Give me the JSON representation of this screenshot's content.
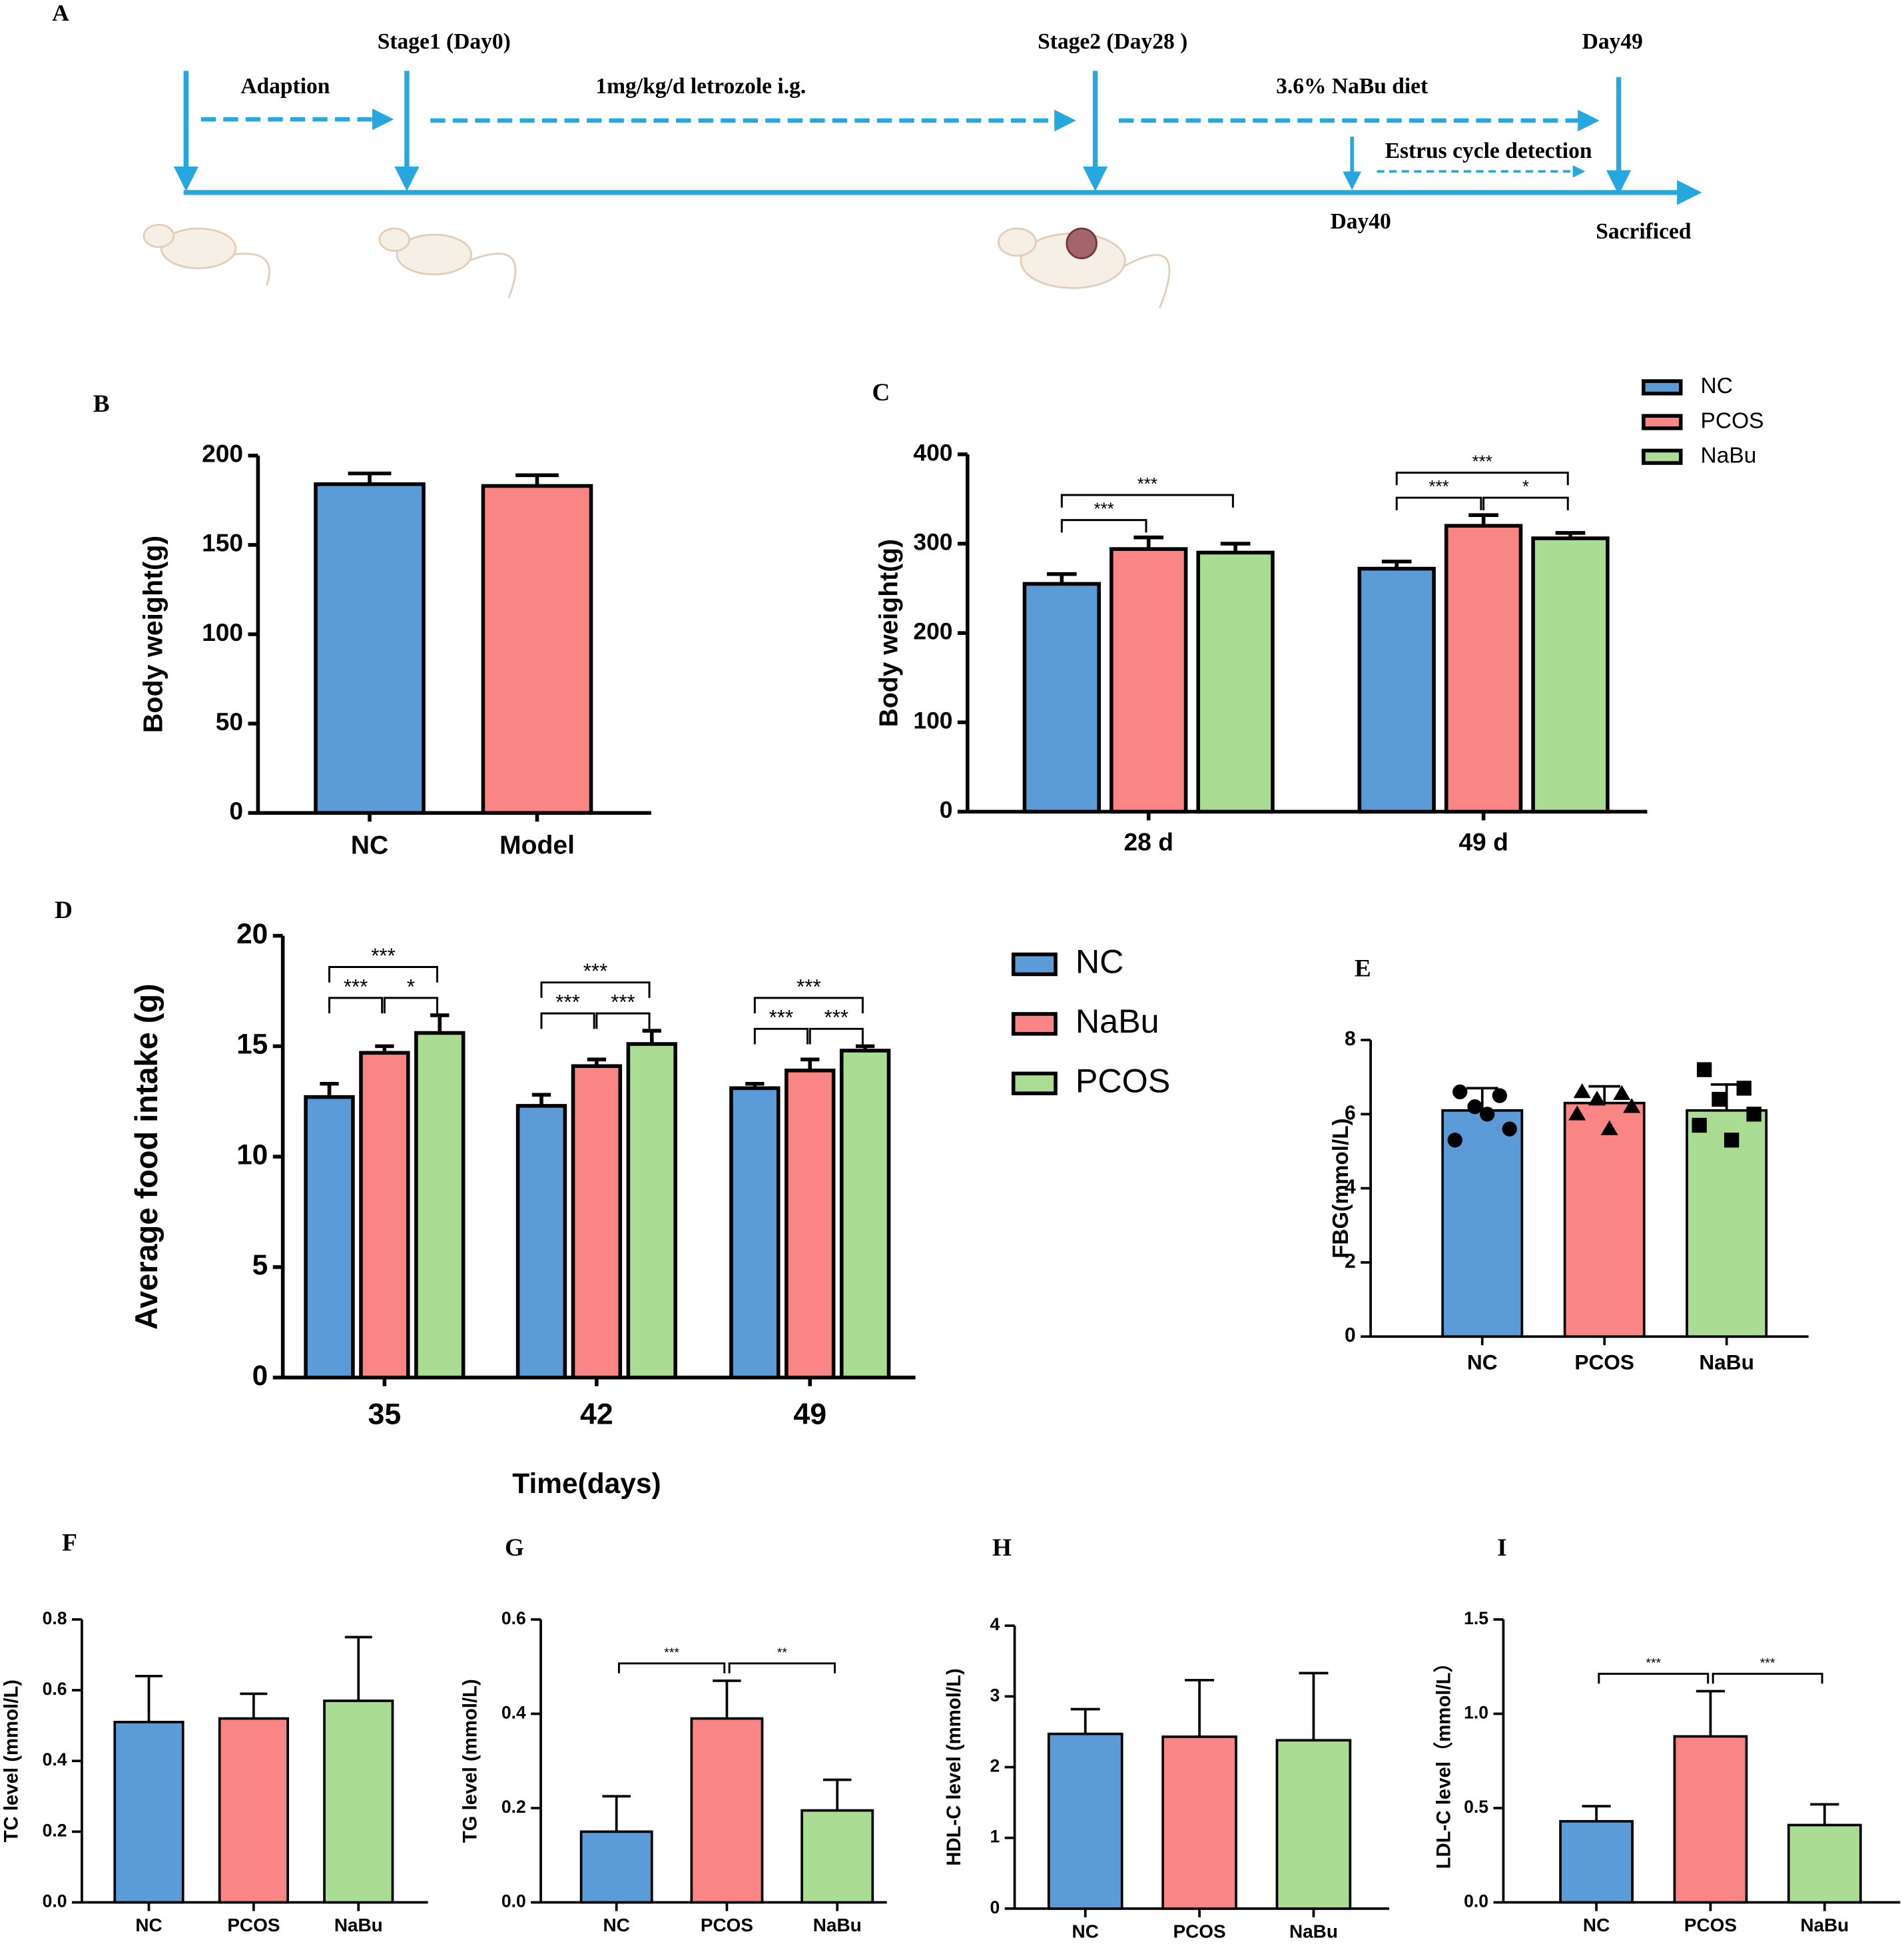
{
  "timeline": {
    "panel": "A",
    "stages": [
      "Stage1 (Day0)",
      "Stage2 (Day28 )",
      "Day49"
    ],
    "phases": [
      "Adaption",
      "1mg/kg/d letrozole i.g.",
      "3.6% NaBu diet",
      "Estrus cycle detection"
    ],
    "markers": [
      "Day40",
      "Sacrificed"
    ]
  },
  "chart_data": [
    {
      "type": "bar",
      "panel": "B",
      "ylabel": "Body weight(g)",
      "categories": [
        "NC",
        "Model"
      ],
      "values": [
        184,
        183
      ],
      "errors": [
        6,
        6
      ],
      "colors": [
        "#5b9bd8",
        "#f98585"
      ],
      "ylim": [
        0,
        200
      ],
      "yticks": [
        0,
        50,
        100,
        150,
        200
      ]
    },
    {
      "type": "grouped_bar",
      "panel": "C",
      "ylabel": "Body weight(g)",
      "categories": [
        "28 d",
        "49 d"
      ],
      "series": [
        {
          "name": "NC",
          "color": "#5b9bd8",
          "values": [
            255,
            272
          ],
          "errors": [
            11,
            8
          ]
        },
        {
          "name": "PCOS",
          "color": "#f98585",
          "values": [
            294,
            320
          ],
          "errors": [
            13,
            12
          ]
        },
        {
          "name": "NaBu",
          "color": "#aadc94",
          "values": [
            290,
            306
          ],
          "errors": [
            10,
            6
          ]
        }
      ],
      "ylim": [
        0,
        400
      ],
      "yticks": [
        0,
        100,
        200,
        300,
        400
      ],
      "legend": "top-right",
      "annotations": [
        {
          "category": "28 d",
          "between": [
            "NC",
            "PCOS"
          ],
          "text": "***"
        },
        {
          "category": "28 d",
          "between": [
            "NC",
            "NaBu"
          ],
          "text": "***"
        },
        {
          "category": "49 d",
          "between": [
            "NC",
            "PCOS"
          ],
          "text": "***"
        },
        {
          "category": "49 d",
          "between": [
            "PCOS",
            "NaBu"
          ],
          "text": "*"
        },
        {
          "category": "49 d",
          "between": [
            "NC",
            "NaBu"
          ],
          "text": "***"
        }
      ]
    },
    {
      "type": "grouped_bar",
      "panel": "D",
      "ylabel": "Average food intake (g)",
      "xlabel": "Time(days)",
      "categories": [
        "35",
        "42",
        "49"
      ],
      "series": [
        {
          "name": "NC",
          "color": "#5b9bd8",
          "values": [
            12.7,
            12.3,
            13.1
          ],
          "errors": [
            0.6,
            0.5,
            0.2
          ]
        },
        {
          "name": "NaBu",
          "color": "#f98585",
          "values": [
            14.7,
            14.1,
            13.9
          ],
          "errors": [
            0.3,
            0.3,
            0.5
          ]
        },
        {
          "name": "PCOS",
          "color": "#aadc94",
          "values": [
            15.6,
            15.1,
            14.8
          ],
          "errors": [
            0.8,
            0.6,
            0.2
          ]
        }
      ],
      "ylim": [
        0,
        20
      ],
      "yticks": [
        0,
        5,
        10,
        15,
        20
      ],
      "legend": "right",
      "annotations": [
        {
          "category": "35",
          "between": [
            "NC",
            "NaBu"
          ],
          "text": "***"
        },
        {
          "category": "35",
          "between": [
            "NaBu",
            "PCOS"
          ],
          "text": "*"
        },
        {
          "category": "35",
          "between": [
            "NC",
            "PCOS"
          ],
          "text": "***"
        },
        {
          "category": "42",
          "between": [
            "NC",
            "NaBu"
          ],
          "text": "***"
        },
        {
          "category": "42",
          "between": [
            "NaBu",
            "PCOS"
          ],
          "text": "***"
        },
        {
          "category": "42",
          "between": [
            "NC",
            "PCOS"
          ],
          "text": "***"
        },
        {
          "category": "49",
          "between": [
            "NC",
            "NaBu"
          ],
          "text": "***"
        },
        {
          "category": "49",
          "between": [
            "NaBu",
            "PCOS"
          ],
          "text": "***"
        },
        {
          "category": "49",
          "between": [
            "NC",
            "PCOS"
          ],
          "text": "***"
        }
      ]
    },
    {
      "type": "bar",
      "panel": "E",
      "ylabel": "FBG(mmol/L)",
      "categories": [
        "NC",
        "PCOS",
        "NaBu"
      ],
      "values": [
        6.1,
        6.3,
        6.1
      ],
      "errors": [
        0.6,
        0.45,
        0.7
      ],
      "colors": [
        "#5b9bd8",
        "#f98585",
        "#aadc94"
      ],
      "points": [
        [
          6.6,
          6.5,
          6.2,
          5.6,
          5.3,
          6.0
        ],
        [
          6.6,
          6.55,
          6.4,
          6.2,
          6.0,
          5.6
        ],
        [
          7.2,
          6.7,
          6.4,
          6.0,
          5.7,
          5.3
        ]
      ],
      "markers": [
        "circle",
        "triangle",
        "square"
      ],
      "ylim": [
        0,
        8
      ],
      "yticks": [
        0,
        2,
        4,
        6,
        8
      ]
    },
    {
      "type": "bar",
      "panel": "F",
      "ylabel": "TC level (mmol/L)",
      "categories": [
        "NC",
        "PCOS",
        "NaBu"
      ],
      "values": [
        0.51,
        0.52,
        0.57
      ],
      "errors": [
        0.13,
        0.07,
        0.18
      ],
      "colors": [
        "#5b9bd8",
        "#f98585",
        "#aadc94"
      ],
      "ylim": [
        0,
        0.8
      ],
      "yticks": [
        {
          "value": 0,
          "label": "0.0"
        },
        0.2,
        0.4,
        0.6,
        0.8
      ]
    },
    {
      "type": "bar",
      "panel": "G",
      "ylabel": "TG level (mmol/L)",
      "categories": [
        "NC",
        "PCOS",
        "NaBu"
      ],
      "values": [
        0.15,
        0.39,
        0.195
      ],
      "errors": [
        0.075,
        0.08,
        0.065
      ],
      "colors": [
        "#5b9bd8",
        "#f98585",
        "#aadc94"
      ],
      "ylim": [
        0,
        0.6
      ],
      "yticks": [
        {
          "value": 0,
          "label": "0.0"
        },
        0.2,
        0.4,
        0.6
      ],
      "annotations": [
        {
          "between": [
            "NC",
            "PCOS"
          ],
          "text": "***"
        },
        {
          "between": [
            "PCOS",
            "NaBu"
          ],
          "text": "**"
        }
      ]
    },
    {
      "type": "bar",
      "panel": "H",
      "ylabel": "HDL-C level (mmol/L)",
      "categories": [
        "NC",
        "PCOS",
        "NaBu"
      ],
      "values": [
        2.47,
        2.43,
        2.38
      ],
      "errors": [
        0.35,
        0.8,
        0.95
      ],
      "colors": [
        "#5b9bd8",
        "#f98585",
        "#aadc94"
      ],
      "ylim": [
        0,
        4
      ],
      "yticks": [
        0,
        1,
        2,
        3,
        4
      ]
    },
    {
      "type": "bar",
      "panel": "I",
      "ylabel": "LDL-C level（mmol/L）",
      "categories": [
        "NC",
        "PCOS",
        "NaBu"
      ],
      "values": [
        0.43,
        0.88,
        0.41
      ],
      "errors": [
        0.08,
        0.24,
        0.11
      ],
      "colors": [
        "#5b9bd8",
        "#f98585",
        "#aadc94"
      ],
      "ylim": [
        0,
        1.5
      ],
      "yticks": [
        {
          "value": 0,
          "label": "0.0"
        },
        0.5,
        {
          "value": 1,
          "label": "1.0"
        },
        1.5
      ],
      "annotations": [
        {
          "between": [
            "NC",
            "PCOS"
          ],
          "text": "***"
        },
        {
          "between": [
            "PCOS",
            "NaBu"
          ],
          "text": "***"
        }
      ]
    }
  ]
}
